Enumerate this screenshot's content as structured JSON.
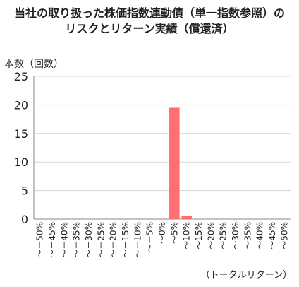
{
  "chart_data": {
    "type": "bar",
    "title_lines": [
      "当社の取り扱った株価指数連動債（単一指数参照）の",
      "リスクとリターン実績（償還済）"
    ],
    "ylabel": "本数（回数）",
    "xlabel": "（トータルリターン）",
    "ylim": [
      0,
      25
    ],
    "yticks": [
      0,
      5,
      10,
      15,
      20,
      25
    ],
    "grid": true,
    "categories": [
      "〜－50%",
      "〜－45%",
      "〜－40%",
      "〜－35%",
      "〜－30%",
      "〜－25%",
      "〜－20%",
      "〜－15%",
      "〜－10%",
      "〜－5%",
      "〜0%",
      "〜5%",
      "〜10%",
      "〜15%",
      "〜20%",
      "〜25%",
      "〜30%",
      "〜35%",
      "〜40%",
      "〜45%",
      "〜50%"
    ],
    "values": [
      0,
      0,
      0,
      0,
      0,
      0,
      0,
      0,
      0,
      0,
      0,
      19.5,
      0.5,
      0,
      0,
      0,
      0,
      0,
      0,
      0,
      0
    ],
    "bar_color": "#ff6f6f",
    "grid_color": "#d6d6d6",
    "axis_color": "#888888"
  }
}
